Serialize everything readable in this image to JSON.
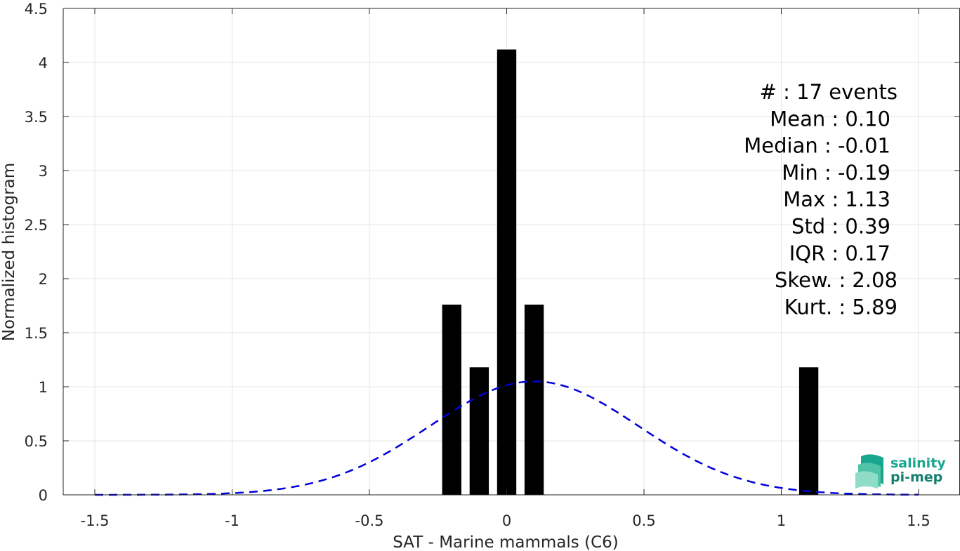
{
  "chart_data": {
    "type": "bar",
    "xlabel": "SAT - Marine mammals (C6)",
    "ylabel": "Normalized histogram",
    "xlim": [
      -1.5,
      1.5
    ],
    "ylim": [
      0,
      4.5
    ],
    "xticks": [
      -1.5,
      -1,
      -0.5,
      0,
      0.5,
      1,
      1.5
    ],
    "xtick_labels": [
      "-1.5",
      "-1",
      "-0.5",
      "0",
      "0.5",
      "1",
      "1.5"
    ],
    "yticks": [
      0,
      0.5,
      1,
      1.5,
      2,
      2.5,
      3,
      3.5,
      4,
      4.5
    ],
    "ytick_labels": [
      "0",
      "0.5",
      "1",
      "1.5",
      "2",
      "2.5",
      "3",
      "3.5",
      "4",
      "4.5"
    ],
    "grid": true,
    "bar_width": 0.07,
    "bar_color": "#000000",
    "bars": [
      {
        "x": -0.2,
        "value": 1.76
      },
      {
        "x": -0.1,
        "value": 1.18
      },
      {
        "x": 0.0,
        "value": 4.12
      },
      {
        "x": 0.1,
        "value": 1.76
      },
      {
        "x": 1.1,
        "value": 1.18
      }
    ],
    "fit_curve": {
      "type": "normal",
      "mean": 0.1,
      "std": 0.38,
      "color": "#0000dd",
      "style": "dashed",
      "x_range": [
        -1.5,
        1.5
      ]
    },
    "stats_lines": [
      "#  : 17 events",
      "Mean : 0.10",
      "Median : -0.01",
      "Min : -0.19",
      "Max : 1.13",
      "Std : 0.39",
      "IQR : 0.17",
      "Skew. : 2.08",
      "Kurt. : 5.89"
    ]
  },
  "logo": {
    "line1": "salinity",
    "line2": "pi-mep"
  }
}
